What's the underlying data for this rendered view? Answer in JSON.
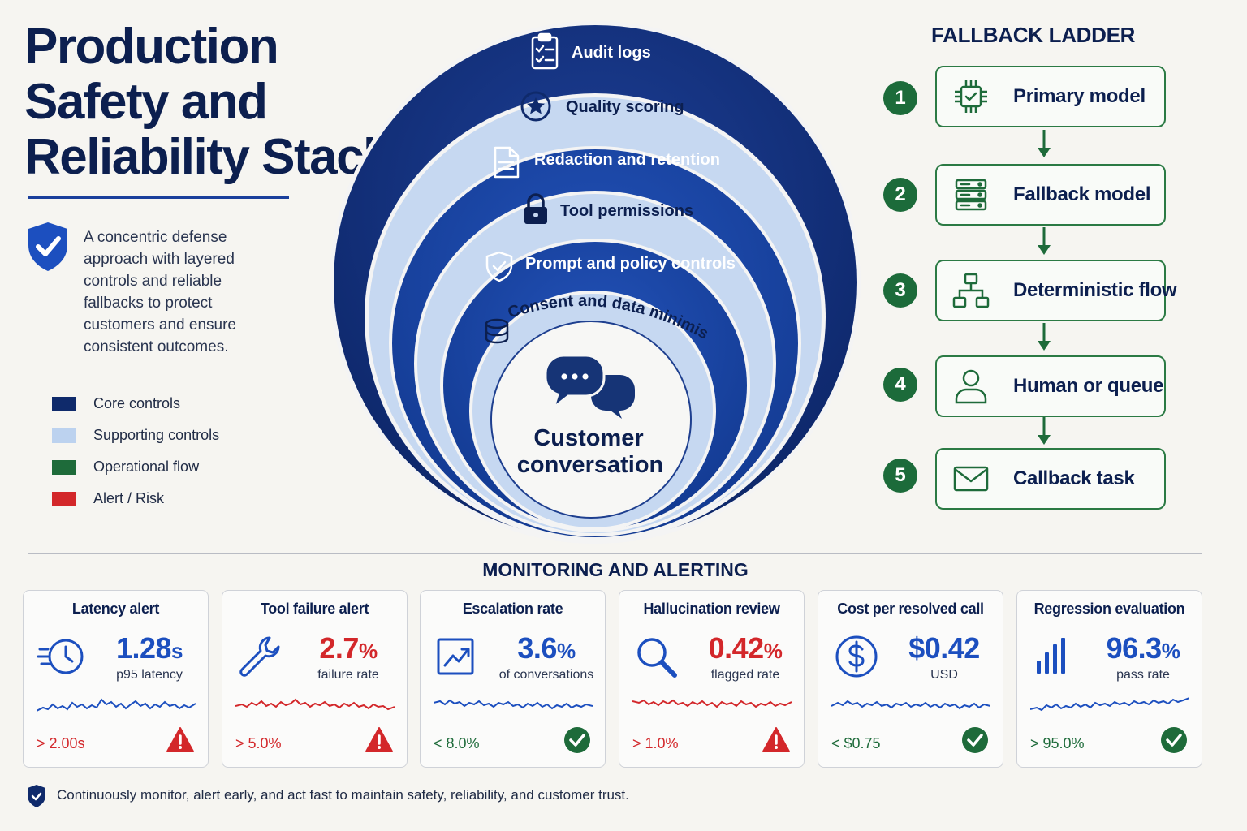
{
  "header": {
    "title_lines": [
      "Production",
      "Safety and",
      "Reliability Stack"
    ],
    "intro": "A concentric defense approach with layered controls and reliable fallbacks to protect customers and ensure consistent outcomes."
  },
  "legend": [
    {
      "label": "Core controls",
      "color": "#0f2a6b"
    },
    {
      "label": "Supporting controls",
      "color": "#bcd2ef"
    },
    {
      "label": "Operational flow",
      "color": "#1e6b3a"
    },
    {
      "label": "Alert / Risk",
      "color": "#d3272a"
    }
  ],
  "diagram": {
    "layers": [
      {
        "label": "Audit logs",
        "icon": "clipboard-icon",
        "tier": "core"
      },
      {
        "label": "Quality scoring",
        "icon": "star-badge-icon",
        "tier": "supporting"
      },
      {
        "label": "Redaction and retention",
        "icon": "document-icon",
        "tier": "core"
      },
      {
        "label": "Tool permissions",
        "icon": "lock-icon",
        "tier": "supporting"
      },
      {
        "label": "Prompt and policy controls",
        "icon": "shield-check-icon",
        "tier": "core"
      },
      {
        "label": "Consent and data minimisation",
        "icon": "database-icon",
        "tier": "supporting"
      }
    ],
    "center": {
      "line1": "Customer",
      "line2": "conversation",
      "icon": "chat-bubbles-icon"
    }
  },
  "ladder": {
    "title": "FALLBACK LADDER",
    "steps": [
      {
        "num": "1",
        "label": "Primary model",
        "icon": "chip-icon"
      },
      {
        "num": "2",
        "label": "Fallback model",
        "icon": "server-icon"
      },
      {
        "num": "3",
        "label": "Deterministic flow",
        "icon": "flowchart-icon"
      },
      {
        "num": "4",
        "label": "Human or queue",
        "icon": "person-icon"
      },
      {
        "num": "5",
        "label": "Callback task",
        "icon": "envelope-icon"
      }
    ]
  },
  "monitoring": {
    "title": "MONITORING AND ALERTING",
    "cards": [
      {
        "title": "Latency alert",
        "value": "1.28",
        "unit": "s",
        "sub": "p95 latency",
        "threshold": "> 2.00s",
        "status": "alert",
        "icon": "clock-icon"
      },
      {
        "title": "Tool failure alert",
        "value": "2.7",
        "unit": "%",
        "sub": "failure rate",
        "threshold": "> 5.0%",
        "status": "alert",
        "icon": "wrench-icon"
      },
      {
        "title": "Escalation rate",
        "value": "3.6",
        "unit": "%",
        "sub": "of conversations",
        "threshold": "< 8.0%",
        "status": "ok",
        "icon": "trend-chart-icon"
      },
      {
        "title": "Hallucination review",
        "value": "0.42",
        "unit": "%",
        "sub": "flagged rate",
        "threshold": "> 1.0%",
        "status": "alert",
        "icon": "magnifier-icon"
      },
      {
        "title": "Cost per resolved call",
        "value": "$0.42",
        "unit": "",
        "sub": "USD",
        "threshold": "< $0.75",
        "status": "ok",
        "icon": "dollar-icon"
      },
      {
        "title": "Regression evaluation",
        "value": "96.3",
        "unit": "%",
        "sub": "pass rate",
        "threshold": "> 95.0%",
        "status": "ok",
        "icon": "bar-chart-icon"
      }
    ]
  },
  "footer": "Continuously monitor, alert early, and act fast to maintain safety, reliability, and customer trust."
}
